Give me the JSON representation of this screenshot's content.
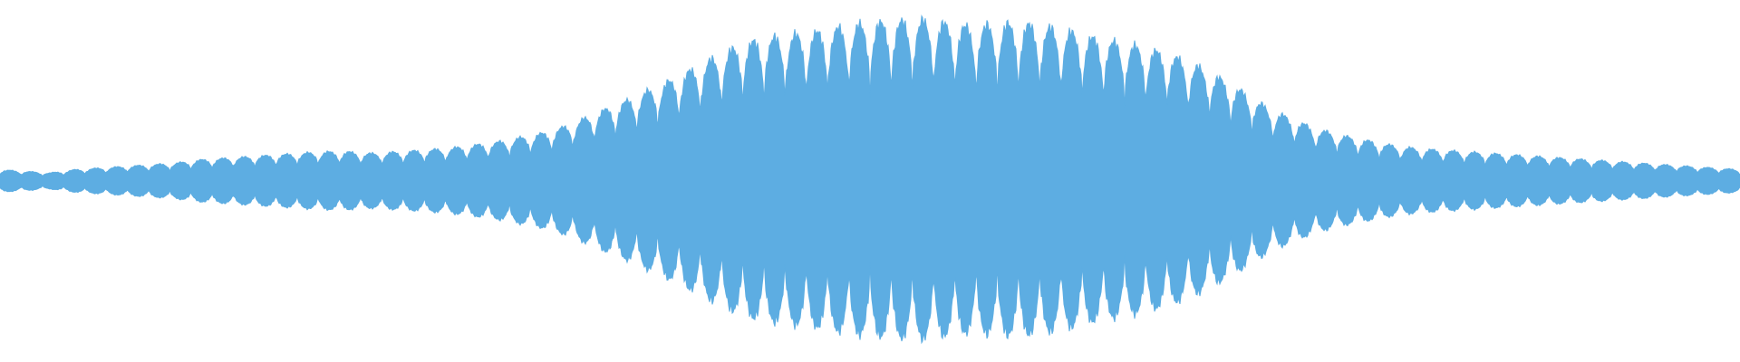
{
  "waveform": {
    "color": "#5dade2",
    "background": "#ffffff",
    "sample_rate_hint": "audio",
    "peak_envelope": [
      0.07,
      0.06,
      0.05,
      0.07,
      0.08,
      0.09,
      0.1,
      0.11,
      0.13,
      0.14,
      0.15,
      0.16,
      0.17,
      0.18,
      0.18,
      0.17,
      0.18,
      0.19,
      0.2,
      0.22,
      0.24,
      0.27,
      0.3,
      0.35,
      0.42,
      0.48,
      0.55,
      0.62,
      0.7,
      0.78,
      0.85,
      0.88,
      0.9,
      0.92,
      0.95,
      0.97,
      0.98,
      0.99,
      0.97,
      0.95,
      0.96,
      0.97,
      0.95,
      0.92,
      0.88,
      0.85,
      0.82,
      0.78,
      0.72,
      0.64,
      0.55,
      0.45,
      0.38,
      0.32,
      0.28,
      0.25,
      0.22,
      0.2,
      0.19,
      0.18,
      0.17,
      0.16,
      0.15,
      0.14,
      0.13,
      0.12,
      0.11,
      0.1,
      0.09,
      0.08,
      0.07
    ],
    "cycles": 82
  }
}
